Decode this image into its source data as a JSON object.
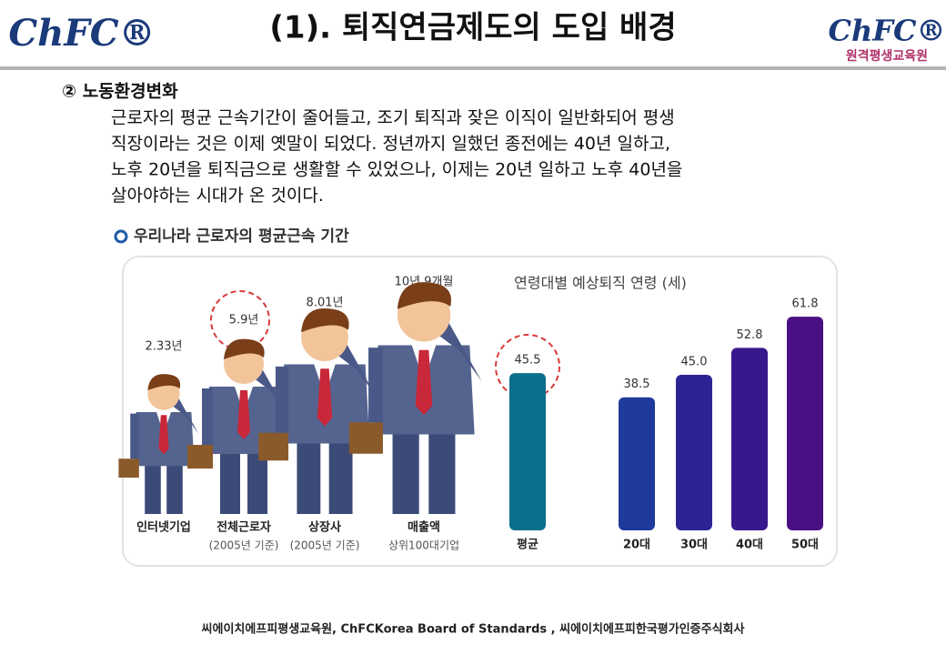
{
  "header": {
    "logo_left": "ChFC®",
    "title": "(1). 퇴직연금제도의 도입 배경",
    "logo_right": "ChFC®",
    "logo_right_sub": "원격평생교육원"
  },
  "section": {
    "heading": "② 노동환경변화",
    "lines": [
      "근로자의 평균 근속기간이 줄어들고, 조기 퇴직과 잦은 이직이 일반화되어 평생",
      "직장이라는 것은 이제 옛말이 되었다. 정년까지 일했던 종전에는 40년 일하고,",
      "노후 20년을 퇴직금으로 생활할 수 있었으나, 이제는 20년 일하고 노후 40년을",
      "살아야하는 시대가 온 것이다."
    ]
  },
  "figure": {
    "title": "우리나라 근로자의 평균근속 기간",
    "people": [
      {
        "value": "2.33년",
        "label": "인터넷기업"
      },
      {
        "value": "5.9년",
        "label": "전체근로자",
        "note": "(2005년 기준)"
      },
      {
        "value": "8.01년",
        "label": "상장사",
        "note": "(2005년 기준)"
      },
      {
        "value": "10년 9개월",
        "label": "매출액",
        "note": "상위100대기업"
      }
    ],
    "chart_data": {
      "type": "bar",
      "title": "연령대별 예상퇴직 연령 (세)",
      "categories": [
        "평균",
        "20대",
        "30대",
        "40대",
        "50대"
      ],
      "values": [
        45.5,
        38.5,
        45.0,
        52.8,
        61.8
      ],
      "value_labels": [
        "45.5",
        "38.5",
        "45.0",
        "52.8",
        "61.8"
      ],
      "colors": [
        "#0a6f8a",
        "#1e3a9c",
        "#2c2494",
        "#38188c",
        "#4a0f82"
      ]
    }
  },
  "footer": "씨에이치에프피평생교육원,  ChFCKorea  Board  of  Standards  ,  씨에이치에프피한국평가인증주식회사"
}
